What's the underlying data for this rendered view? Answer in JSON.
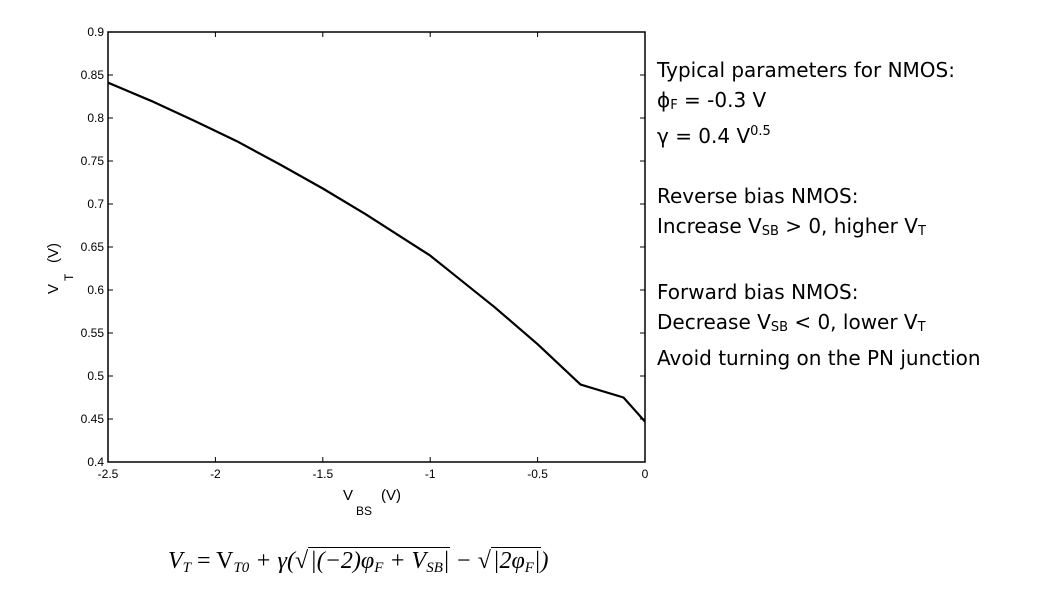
{
  "chart_data": {
    "type": "line",
    "xlabel": {
      "main": "V",
      "sub": "BS",
      "unit": "(V)"
    },
    "ylabel": {
      "main": "V",
      "sub": "T",
      "unit": "(V)"
    },
    "xlim": [
      -2.5,
      0
    ],
    "ylim": [
      0.4,
      0.9
    ],
    "x_ticks": [
      "-2.5",
      "-2",
      "-1.5",
      "-1",
      "-0.5",
      "0"
    ],
    "y_ticks": [
      "0.4",
      "0.45",
      "0.5",
      "0.55",
      "0.6",
      "0.65",
      "0.7",
      "0.75",
      "0.8",
      "0.85",
      "0.9"
    ],
    "grid": false,
    "legend": "none",
    "series": [
      {
        "color": "#000000",
        "x": [
          -2.5,
          -2.3,
          -2.1,
          -1.9,
          -1.7,
          -1.5,
          -1.3,
          -1.1,
          -1.0,
          -0.9,
          -0.7,
          -0.5,
          -0.3,
          -0.1,
          0
        ],
        "y": [
          0.841,
          0.82,
          0.797,
          0.773,
          0.746,
          0.718,
          0.688,
          0.656,
          0.64,
          0.62,
          0.58,
          0.537,
          0.49,
          0.475,
          0.447
        ]
      }
    ]
  },
  "notes": {
    "nmos_title": "Typical parameters for NMOS:",
    "phi_symbol": "ϕ",
    "phi_sub": "F",
    "phi_value": " = -0.3 V",
    "gamma_text": "γ = 0.4 V",
    "gamma_sup": "0.5",
    "reverse_title": "Reverse bias NMOS:",
    "reverse_pre": "Increase V",
    "reverse_sub": "SB",
    "reverse_mid": " > 0, higher V",
    "reverse_sub2": "T",
    "forward_title": "Forward bias NMOS:",
    "forward_pre": "Decrease V",
    "forward_sub": "SB",
    "forward_mid": " < 0, lower V",
    "forward_sub2": "T",
    "forward_note": "Avoid turning on the PN junction"
  },
  "formula": {
    "lhs": "V",
    "lhs_sub": "T",
    "eq": " = V",
    "vt0_sub": "T0",
    "plus_gamma": " + γ(√",
    "rad1": "|(−2)φ",
    "rad1_sub": "F",
    "rad1_mid": " + V",
    "rad1_sub2": "SB",
    "rad1_end": "|",
    "minus": " − √",
    "rad2": "|2φ",
    "rad2_sub": "F",
    "rad2_end": "|",
    "close": ")"
  }
}
